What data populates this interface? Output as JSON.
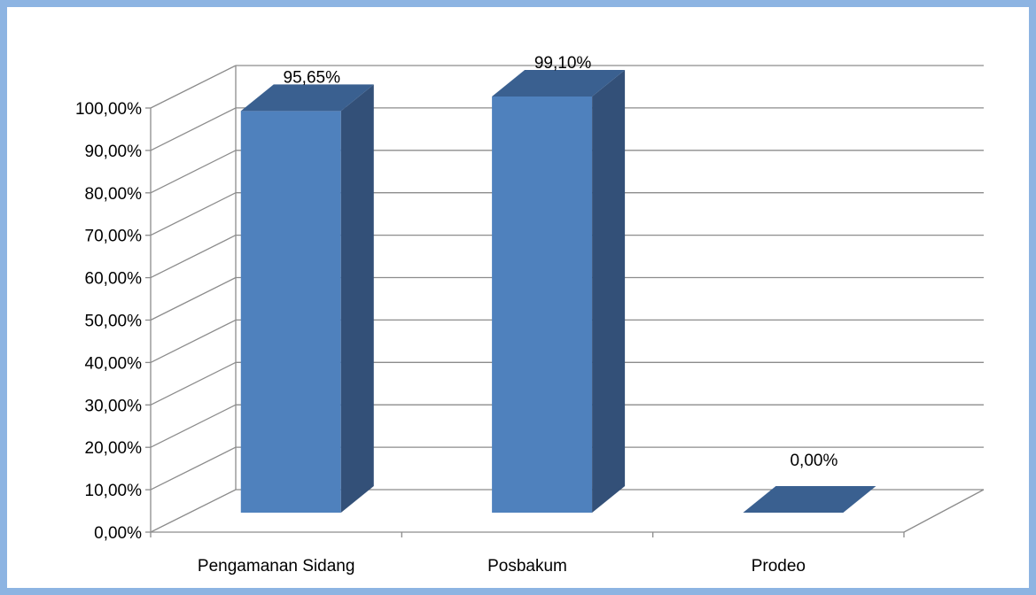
{
  "chart_data": {
    "type": "bar",
    "style": "3d-column",
    "categories": [
      "Pengamanan Sidang",
      "Posbakum",
      "Prodeo"
    ],
    "values": [
      95.65,
      99.1,
      0.0
    ],
    "data_labels": [
      "95,65%",
      "99,10%",
      "0,00%"
    ],
    "ylim": [
      0,
      100
    ],
    "y_ticks": [
      "0,00%",
      "10,00%",
      "20,00%",
      "30,00%",
      "40,00%",
      "50,00%",
      "60,00%",
      "70,00%",
      "80,00%",
      "90,00%",
      "100,00%"
    ],
    "grid": true,
    "legend": "none",
    "colors": {
      "bar_front": "#4f81bd",
      "bar_side": "#335078",
      "bar_top": "#3a6090",
      "grid": "#8c8c8c",
      "border": "#8db4e2"
    }
  }
}
